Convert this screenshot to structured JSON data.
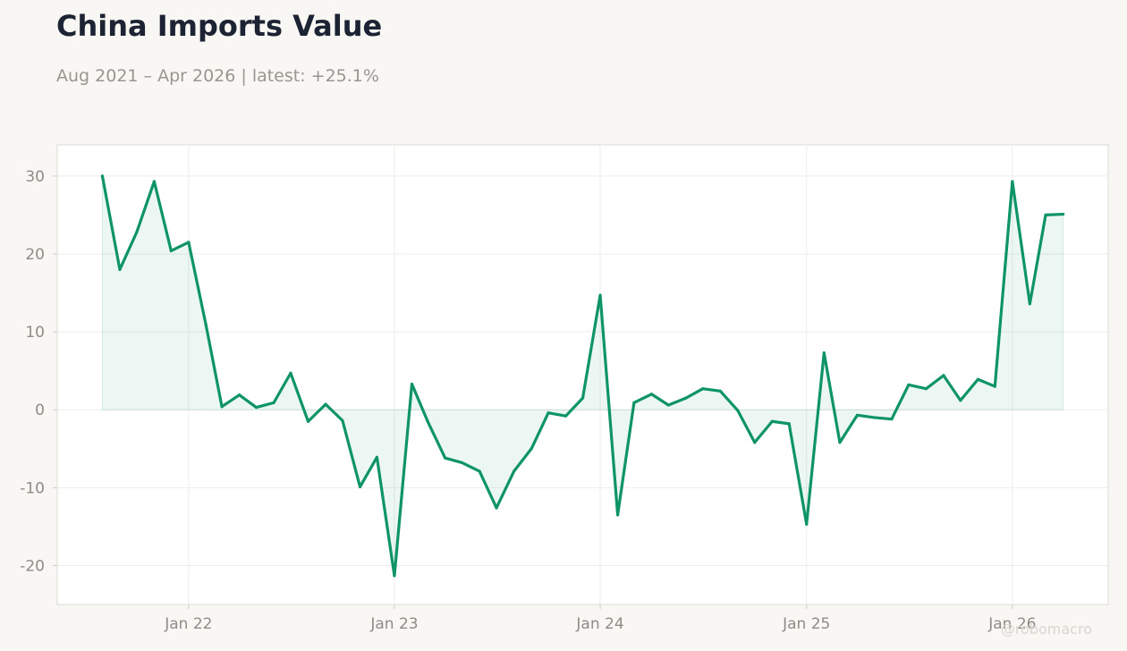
{
  "title": "China Imports Value",
  "subtitle": "Aug 2021 – Apr 2026 | latest: +25.1%",
  "watermark": "@robomacro",
  "colors": {
    "line": "#0e9467",
    "area": "#0e9467",
    "background": "#f8f7f4",
    "plot_background": "#ffffff",
    "title": "#1c2333",
    "subtitle": "#999590",
    "tick_text": "#8f8b86"
  },
  "chart_data": {
    "type": "area",
    "title": "China Imports Value",
    "subtitle": "Aug 2021 – Apr 2026 | latest: +25.1%",
    "xlabel": "",
    "ylabel": "",
    "ylim": [
      -25,
      34
    ],
    "xlim": [
      "2021-05-13",
      "2026-06-20"
    ],
    "grid": true,
    "legend": "none",
    "x_ticks": [
      {
        "date": "2022-01-01",
        "label": "Jan 22"
      },
      {
        "date": "2023-01-01",
        "label": "Jan 23"
      },
      {
        "date": "2024-01-01",
        "label": "Jan 24"
      },
      {
        "date": "2025-01-01",
        "label": "Jan 25"
      },
      {
        "date": "2026-01-01",
        "label": "Jan 26"
      }
    ],
    "y_ticks": [
      {
        "value": 30,
        "label": "30"
      },
      {
        "value": 20,
        "label": "20"
      },
      {
        "value": 10,
        "label": "10"
      },
      {
        "value": 0,
        "label": "0"
      },
      {
        "value": -10,
        "label": "-10"
      },
      {
        "value": -20,
        "label": "-20"
      }
    ],
    "series": [
      {
        "x": [
          "2021-08-01",
          "2021-09-01",
          "2021-10-01",
          "2021-11-01",
          "2021-12-01",
          "2022-01-01",
          "2022-02-01",
          "2022-03-01",
          "2022-04-01",
          "2022-05-01",
          "2022-06-01",
          "2022-07-01",
          "2022-08-01",
          "2022-09-01",
          "2022-10-01",
          "2022-11-01",
          "2022-12-01",
          "2023-01-01",
          "2023-02-01",
          "2023-03-01",
          "2023-04-01",
          "2023-05-01",
          "2023-06-01",
          "2023-07-01",
          "2023-08-01",
          "2023-09-01",
          "2023-10-01",
          "2023-11-01",
          "2023-12-01",
          "2024-01-01",
          "2024-02-01",
          "2024-03-01",
          "2024-04-01",
          "2024-05-01",
          "2024-06-01",
          "2024-07-01",
          "2024-08-01",
          "2024-09-01",
          "2024-10-01",
          "2024-11-01",
          "2024-12-01",
          "2025-01-01",
          "2025-02-01",
          "2025-03-01",
          "2025-04-01",
          "2025-05-01",
          "2025-06-01",
          "2025-07-01",
          "2025-08-01",
          "2025-09-01",
          "2025-10-01",
          "2025-11-01",
          "2025-12-01",
          "2026-01-01",
          "2026-02-01",
          "2026-03-01",
          "2026-04-01"
        ],
        "values": [
          30.0,
          18.0,
          22.8,
          29.3,
          20.4,
          21.5,
          10.8,
          0.4,
          1.9,
          0.3,
          0.9,
          4.7,
          -1.5,
          0.7,
          -1.4,
          -9.9,
          -6.1,
          -21.3,
          3.3,
          -1.5,
          -6.2,
          -6.8,
          -7.9,
          -12.6,
          -7.9,
          -5.0,
          -0.4,
          -0.8,
          1.5,
          14.7,
          -13.5,
          0.9,
          2.0,
          0.6,
          1.5,
          2.7,
          2.4,
          -0.1,
          -4.2,
          -1.5,
          -1.8,
          -14.7,
          7.3,
          -4.2,
          -0.7,
          -1.0,
          -1.2,
          3.2,
          2.7,
          4.4,
          1.2,
          3.9,
          3.0,
          29.3,
          13.6,
          25.0,
          25.1
        ]
      }
    ]
  }
}
